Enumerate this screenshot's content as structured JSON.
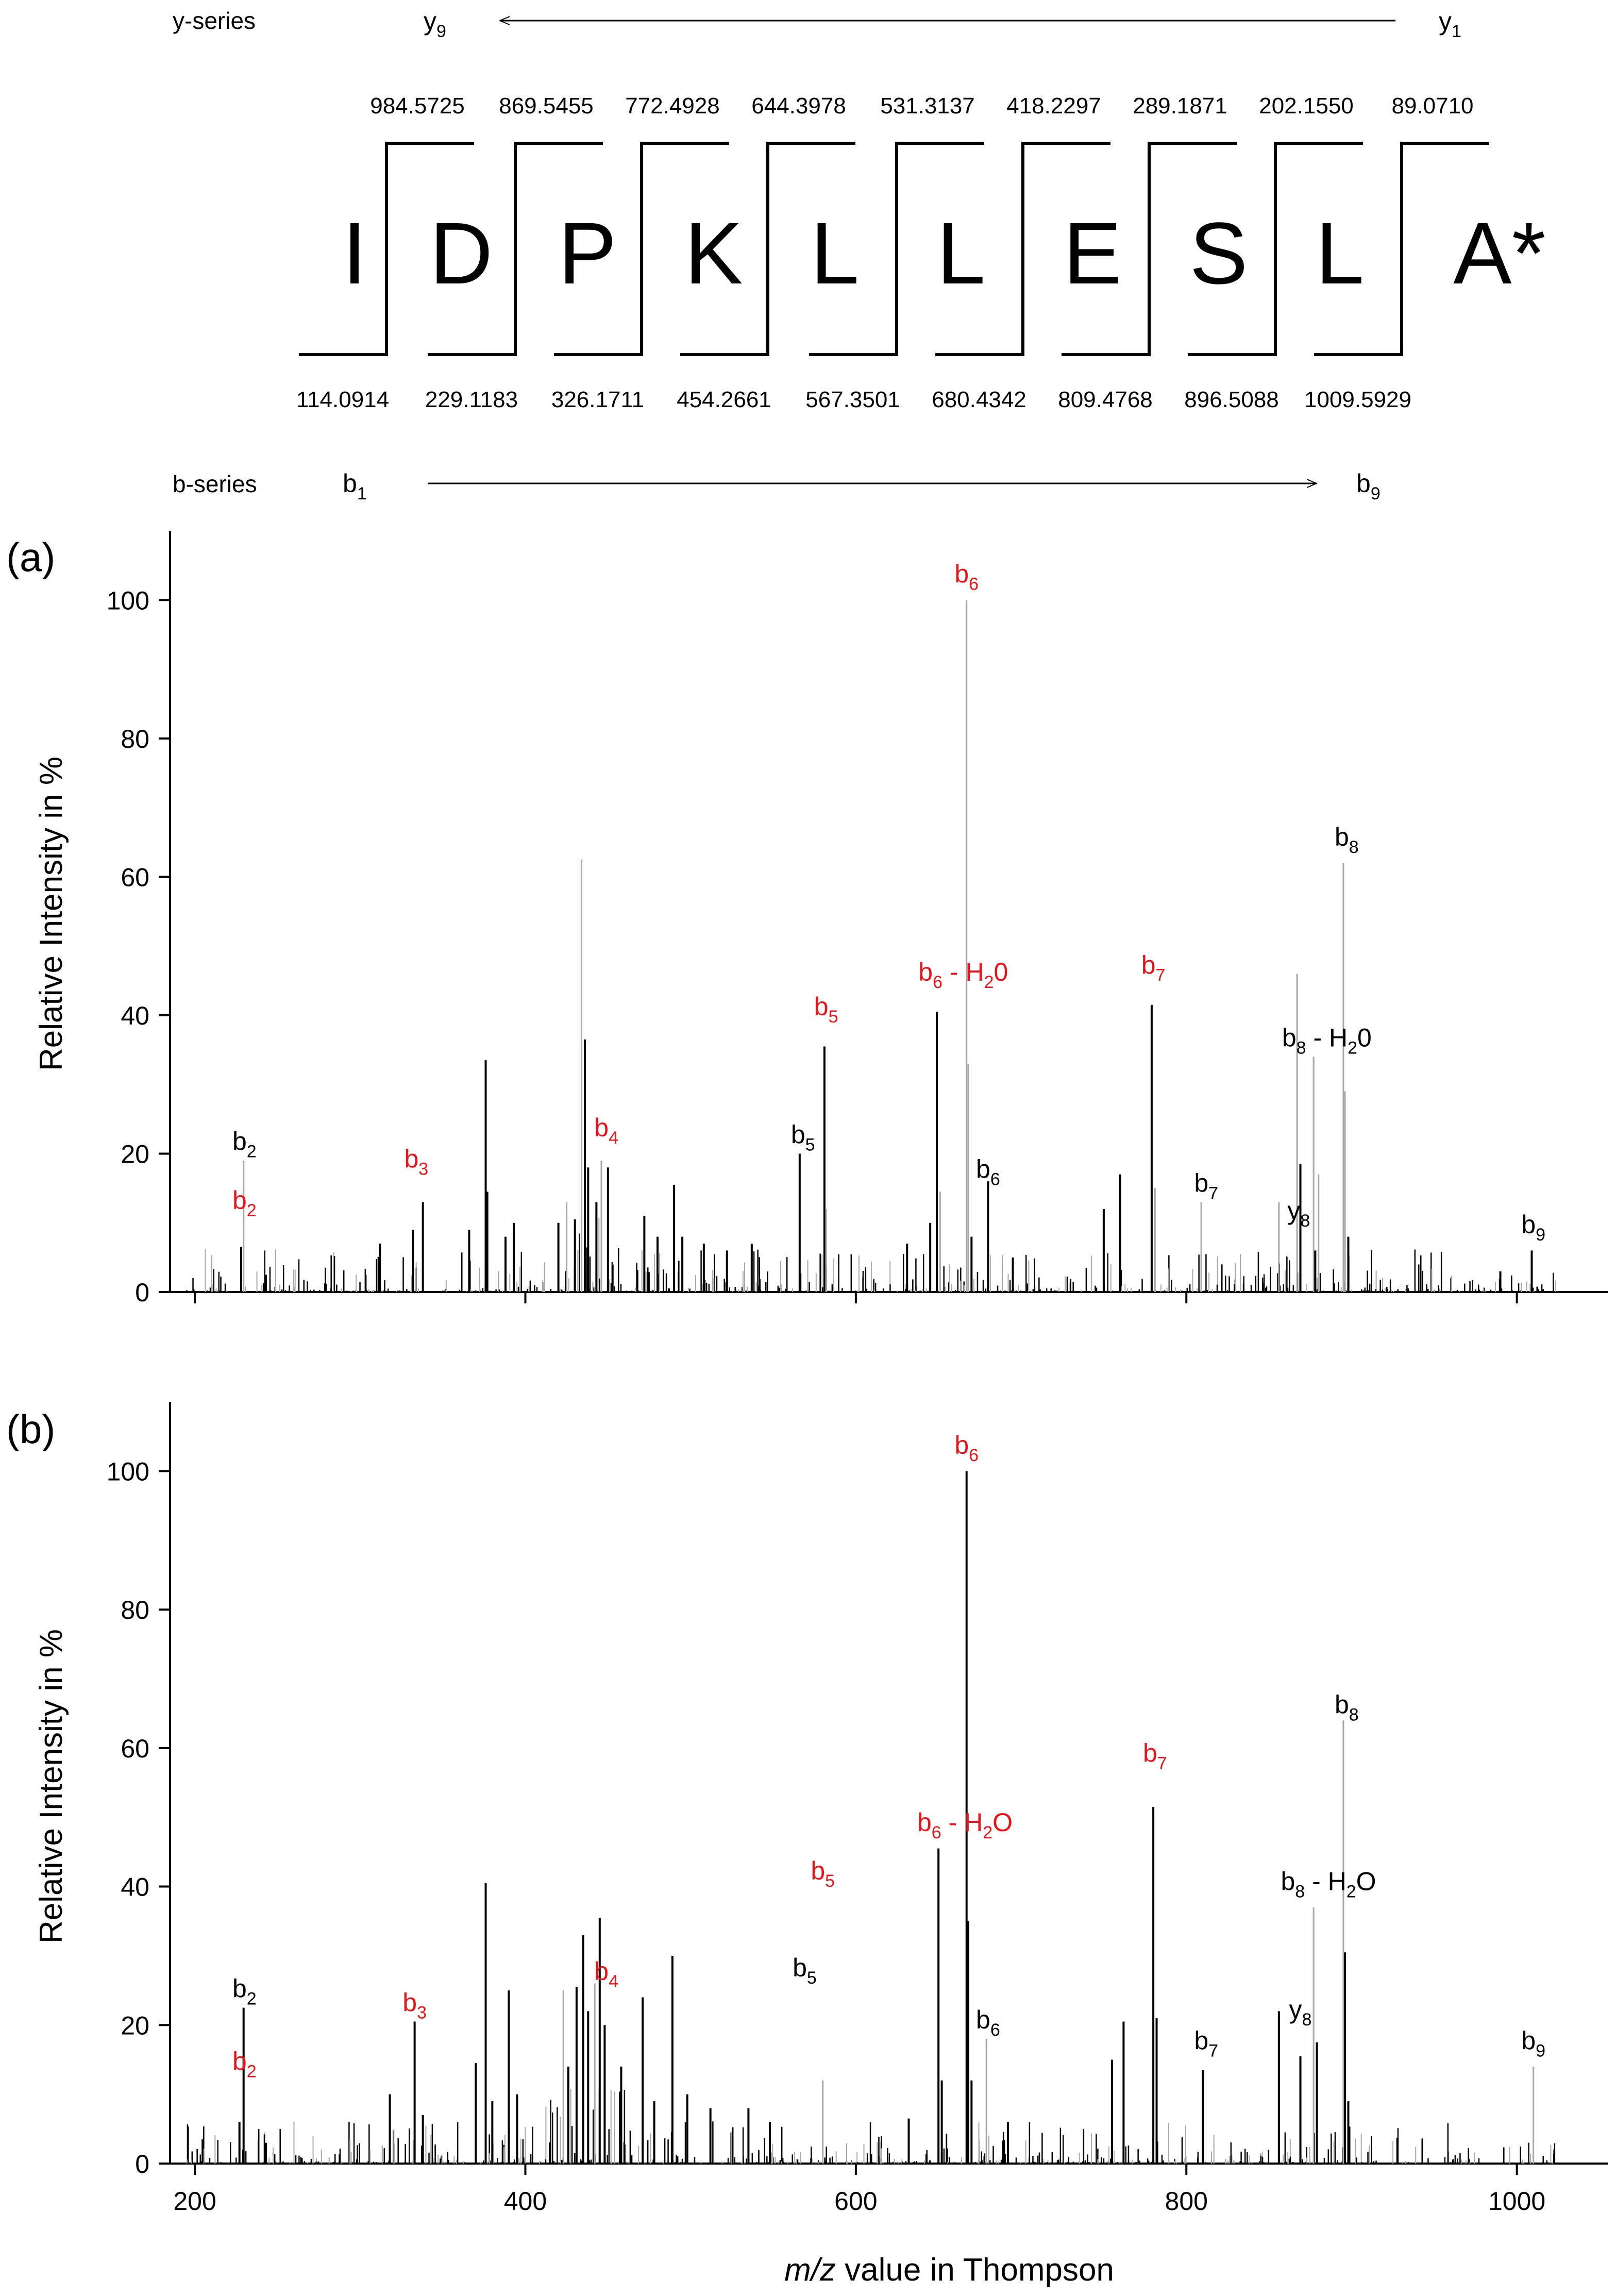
{
  "colors": {
    "red": "#e8141a",
    "black": "#000000",
    "gray": "#a8a8a8"
  },
  "header": {
    "y_series_label": "y-series",
    "b_series_label": "b-series",
    "y_first": {
      "letter": "y",
      "sub": "9"
    },
    "y_last": {
      "letter": "y",
      "sub": "1"
    },
    "b_first": {
      "letter": "b",
      "sub": "1"
    },
    "b_last": {
      "letter": "b",
      "sub": "9"
    },
    "residues": [
      "I",
      "D",
      "P",
      "K",
      "L",
      "L",
      "E",
      "S",
      "L",
      "A*"
    ],
    "y_masses": [
      "984.5725",
      "869.5455",
      "772.4928",
      "644.3978",
      "531.3137",
      "418.2297",
      "289.1871",
      "202.1550",
      "89.0710"
    ],
    "b_masses": [
      "114.0914",
      "229.1183",
      "326.1711",
      "454.2661",
      "567.3501",
      "680.4342",
      "809.4768",
      "896.5088",
      "1009.5929"
    ]
  },
  "chart_data": [
    {
      "type": "bar",
      "panel_label": "(a)",
      "ylabel": "Relative Intensity in %",
      "xlim": [
        185,
        1055
      ],
      "ylim": [
        0,
        110
      ],
      "yticks": [
        "0",
        "20",
        "40",
        "60",
        "80",
        "100"
      ],
      "major_peaks": [
        {
          "x": 228,
          "y": 6.5,
          "c": "b"
        },
        {
          "x": 229.5,
          "y": 19,
          "c": "g"
        },
        {
          "x": 243,
          "y": 2.5,
          "c": "b"
        },
        {
          "x": 312,
          "y": 7,
          "c": "b"
        },
        {
          "x": 332,
          "y": 9,
          "c": "b"
        },
        {
          "x": 338,
          "y": 13,
          "c": "b"
        },
        {
          "x": 366,
          "y": 9,
          "c": "b"
        },
        {
          "x": 376,
          "y": 33.5,
          "c": "b"
        },
        {
          "x": 377,
          "y": 14.5,
          "c": "b"
        },
        {
          "x": 388,
          "y": 8,
          "c": "b"
        },
        {
          "x": 393,
          "y": 10,
          "c": "b"
        },
        {
          "x": 420,
          "y": 10,
          "c": "b"
        },
        {
          "x": 425,
          "y": 13,
          "c": "g"
        },
        {
          "x": 430,
          "y": 10.5,
          "c": "b"
        },
        {
          "x": 434,
          "y": 62.5,
          "c": "g"
        },
        {
          "x": 436,
          "y": 36.5,
          "c": "b"
        },
        {
          "x": 438,
          "y": 18,
          "c": "b"
        },
        {
          "x": 443,
          "y": 13,
          "c": "b"
        },
        {
          "x": 446,
          "y": 19,
          "c": "g"
        },
        {
          "x": 450,
          "y": 18,
          "c": "b"
        },
        {
          "x": 472,
          "y": 11,
          "c": "b"
        },
        {
          "x": 480,
          "y": 8,
          "c": "b"
        },
        {
          "x": 490,
          "y": 15.5,
          "c": "b"
        },
        {
          "x": 495,
          "y": 8,
          "c": "b"
        },
        {
          "x": 508,
          "y": 7,
          "c": "b"
        },
        {
          "x": 522,
          "y": 6,
          "c": "b"
        },
        {
          "x": 537,
          "y": 7,
          "c": "b"
        },
        {
          "x": 566,
          "y": 20,
          "c": "b"
        },
        {
          "x": 581,
          "y": 35.5,
          "c": "b"
        },
        {
          "x": 582,
          "y": 12,
          "c": "g"
        },
        {
          "x": 631,
          "y": 7,
          "c": "b"
        },
        {
          "x": 645,
          "y": 10,
          "c": "b"
        },
        {
          "x": 649,
          "y": 40.5,
          "c": "b"
        },
        {
          "x": 651,
          "y": 14.5,
          "c": "g"
        },
        {
          "x": 667,
          "y": 100,
          "c": "g"
        },
        {
          "x": 668,
          "y": 33,
          "c": "g"
        },
        {
          "x": 670,
          "y": 8,
          "c": "b"
        },
        {
          "x": 680,
          "y": 16,
          "c": "b"
        },
        {
          "x": 695,
          "y": 5,
          "c": "b"
        },
        {
          "x": 750,
          "y": 12,
          "c": "b"
        },
        {
          "x": 760,
          "y": 17,
          "c": "b"
        },
        {
          "x": 779,
          "y": 41.5,
          "c": "b"
        },
        {
          "x": 781,
          "y": 15,
          "c": "g"
        },
        {
          "x": 809,
          "y": 13,
          "c": "g"
        },
        {
          "x": 856,
          "y": 13,
          "c": "g"
        },
        {
          "x": 867,
          "y": 46,
          "c": "g"
        },
        {
          "x": 869,
          "y": 18.5,
          "c": "b"
        },
        {
          "x": 877,
          "y": 34,
          "c": "g"
        },
        {
          "x": 878,
          "y": 6,
          "c": "b"
        },
        {
          "x": 880,
          "y": 17,
          "c": "g"
        },
        {
          "x": 895,
          "y": 62,
          "c": "g"
        },
        {
          "x": 896,
          "y": 29,
          "c": "g"
        },
        {
          "x": 898,
          "y": 8,
          "c": "b"
        },
        {
          "x": 990,
          "y": 3,
          "c": "b"
        },
        {
          "x": 1009,
          "y": 6,
          "c": "b"
        }
      ],
      "annotations": [
        {
          "base": "b",
          "sub": "2",
          "suffix": "",
          "color": "black",
          "x": 230,
          "y": 20.5
        },
        {
          "base": "b",
          "sub": "2",
          "suffix": "",
          "color": "red",
          "x": 230,
          "y": 12
        },
        {
          "base": "b",
          "sub": "3",
          "suffix": "",
          "color": "red",
          "x": 334,
          "y": 18
        },
        {
          "base": "b",
          "sub": "4",
          "suffix": "",
          "color": "red",
          "x": 449,
          "y": 22.5
        },
        {
          "base": "b",
          "sub": "5",
          "suffix": "",
          "color": "black",
          "x": 568,
          "y": 21.5
        },
        {
          "base": "b",
          "sub": "5",
          "suffix": "",
          "color": "red",
          "x": 582,
          "y": 40
        },
        {
          "base": "b",
          "sub": "6",
          "suffix": "",
          "color": "black",
          "x": 680,
          "y": 16.5
        },
        {
          "base": "b",
          "sub": "6",
          "suffix": " - H",
          "suffix_sub": "2",
          "suffix_tail": "0",
          "color": "red",
          "x": 665,
          "y": 45
        },
        {
          "base": "b",
          "sub": "6",
          "suffix": "",
          "color": "red",
          "x": 667,
          "y": 102.5
        },
        {
          "base": "b",
          "sub": "7",
          "suffix": "",
          "color": "red",
          "x": 780,
          "y": 46
        },
        {
          "base": "b",
          "sub": "7",
          "suffix": "",
          "color": "black",
          "x": 812,
          "y": 14.5
        },
        {
          "base": "y",
          "sub": "8",
          "suffix": "",
          "color": "black",
          "x": 868,
          "y": 10.5
        },
        {
          "base": "b",
          "sub": "8",
          "suffix": " - H",
          "suffix_sub": "2",
          "suffix_tail": "0",
          "color": "black",
          "x": 885,
          "y": 35.5
        },
        {
          "base": "b",
          "sub": "8",
          "suffix": "",
          "color": "black",
          "x": 897,
          "y": 64.5
        },
        {
          "base": "b",
          "sub": "9",
          "suffix": "",
          "color": "black",
          "x": 1010,
          "y": 8.5
        }
      ]
    },
    {
      "type": "bar",
      "panel_label": "(b)",
      "ylabel": "Relative Intensity in %",
      "xlabel_italic": "m/z",
      "xlabel_rest": " value in Thompson",
      "xlim": [
        185,
        1055
      ],
      "ylim": [
        0,
        110
      ],
      "xticks": [
        "200",
        "400",
        "600",
        "800",
        "1000"
      ],
      "yticks": [
        "0",
        "20",
        "40",
        "60",
        "80",
        "100"
      ],
      "major_peaks": [
        {
          "x": 227,
          "y": 6,
          "c": "b"
        },
        {
          "x": 229.5,
          "y": 22.5,
          "c": "b"
        },
        {
          "x": 243,
          "y": 3,
          "c": "b"
        },
        {
          "x": 318,
          "y": 10,
          "c": "b"
        },
        {
          "x": 333,
          "y": 20.5,
          "c": "b"
        },
        {
          "x": 338,
          "y": 7,
          "c": "b"
        },
        {
          "x": 370,
          "y": 14.5,
          "c": "b"
        },
        {
          "x": 376,
          "y": 40.5,
          "c": "b"
        },
        {
          "x": 380,
          "y": 9,
          "c": "b"
        },
        {
          "x": 390,
          "y": 25,
          "c": "b"
        },
        {
          "x": 395,
          "y": 10,
          "c": "b"
        },
        {
          "x": 423,
          "y": 25,
          "c": "g"
        },
        {
          "x": 426,
          "y": 14,
          "c": "b"
        },
        {
          "x": 431,
          "y": 25.5,
          "c": "b"
        },
        {
          "x": 435,
          "y": 33,
          "c": "b"
        },
        {
          "x": 438,
          "y": 22,
          "c": "b"
        },
        {
          "x": 442,
          "y": 26,
          "c": "g"
        },
        {
          "x": 445,
          "y": 35.5,
          "c": "b"
        },
        {
          "x": 448,
          "y": 20,
          "c": "b"
        },
        {
          "x": 458,
          "y": 14,
          "c": "b"
        },
        {
          "x": 471,
          "y": 24,
          "c": "b"
        },
        {
          "x": 478,
          "y": 9,
          "c": "b"
        },
        {
          "x": 489,
          "y": 30,
          "c": "b"
        },
        {
          "x": 498,
          "y": 10,
          "c": "b"
        },
        {
          "x": 512,
          "y": 8,
          "c": "b"
        },
        {
          "x": 535,
          "y": 8,
          "c": "b"
        },
        {
          "x": 548,
          "y": 6,
          "c": "b"
        },
        {
          "x": 580,
          "y": 12,
          "c": "g"
        },
        {
          "x": 632,
          "y": 6.5,
          "c": "b"
        },
        {
          "x": 650,
          "y": 45.5,
          "c": "b"
        },
        {
          "x": 652,
          "y": 12,
          "c": "b"
        },
        {
          "x": 667,
          "y": 100,
          "c": "b"
        },
        {
          "x": 668,
          "y": 35,
          "c": "b"
        },
        {
          "x": 670,
          "y": 12,
          "c": "b"
        },
        {
          "x": 679,
          "y": 18,
          "c": "g"
        },
        {
          "x": 692,
          "y": 6,
          "c": "b"
        },
        {
          "x": 755,
          "y": 15,
          "c": "b"
        },
        {
          "x": 762,
          "y": 20.5,
          "c": "b"
        },
        {
          "x": 780,
          "y": 51.5,
          "c": "b"
        },
        {
          "x": 782,
          "y": 21,
          "c": "b"
        },
        {
          "x": 810,
          "y": 13.5,
          "c": "b"
        },
        {
          "x": 856,
          "y": 22,
          "c": "b"
        },
        {
          "x": 869,
          "y": 15.5,
          "c": "b"
        },
        {
          "x": 877,
          "y": 37,
          "c": "g"
        },
        {
          "x": 879,
          "y": 17.5,
          "c": "b"
        },
        {
          "x": 895,
          "y": 64,
          "c": "g"
        },
        {
          "x": 896,
          "y": 30.5,
          "c": "b"
        },
        {
          "x": 898,
          "y": 9,
          "c": "b"
        },
        {
          "x": 1010,
          "y": 14,
          "c": "g"
        }
      ],
      "annotations": [
        {
          "base": "b",
          "sub": "2",
          "suffix": "",
          "color": "black",
          "x": 230,
          "y": 24
        },
        {
          "base": "b",
          "sub": "2",
          "suffix": "",
          "color": "red",
          "x": 230,
          "y": 13.5
        },
        {
          "base": "b",
          "sub": "3",
          "suffix": "",
          "color": "red",
          "x": 333,
          "y": 22
        },
        {
          "base": "b",
          "sub": "4",
          "suffix": "",
          "color": "red",
          "x": 449,
          "y": 26.5
        },
        {
          "base": "b",
          "sub": "5",
          "suffix": "",
          "color": "black",
          "x": 569,
          "y": 27
        },
        {
          "base": "b",
          "sub": "5",
          "suffix": "",
          "color": "red",
          "x": 580,
          "y": 41
        },
        {
          "base": "b",
          "sub": "6",
          "suffix": "",
          "color": "black",
          "x": 680,
          "y": 19.5
        },
        {
          "base": "b",
          "sub": "6",
          "suffix": " - H",
          "suffix_sub": "2",
          "suffix_tail": "O",
          "color": "red",
          "x": 666,
          "y": 48
        },
        {
          "base": "b",
          "sub": "6",
          "suffix": "",
          "color": "red",
          "x": 667,
          "y": 102.5
        },
        {
          "base": "b",
          "sub": "7",
          "suffix": "",
          "color": "red",
          "x": 781,
          "y": 58
        },
        {
          "base": "b",
          "sub": "7",
          "suffix": "",
          "color": "black",
          "x": 812,
          "y": 16.5
        },
        {
          "base": "y",
          "sub": "8",
          "suffix": "",
          "color": "black",
          "x": 869,
          "y": 21
        },
        {
          "base": "b",
          "sub": "8",
          "suffix": " - H",
          "suffix_sub": "2",
          "suffix_tail": "O",
          "color": "black",
          "x": 886,
          "y": 39.5
        },
        {
          "base": "b",
          "sub": "8",
          "suffix": "",
          "color": "black",
          "x": 897,
          "y": 65
        },
        {
          "base": "b",
          "sub": "9",
          "suffix": "",
          "color": "black",
          "x": 1010,
          "y": 16.5
        }
      ]
    }
  ]
}
